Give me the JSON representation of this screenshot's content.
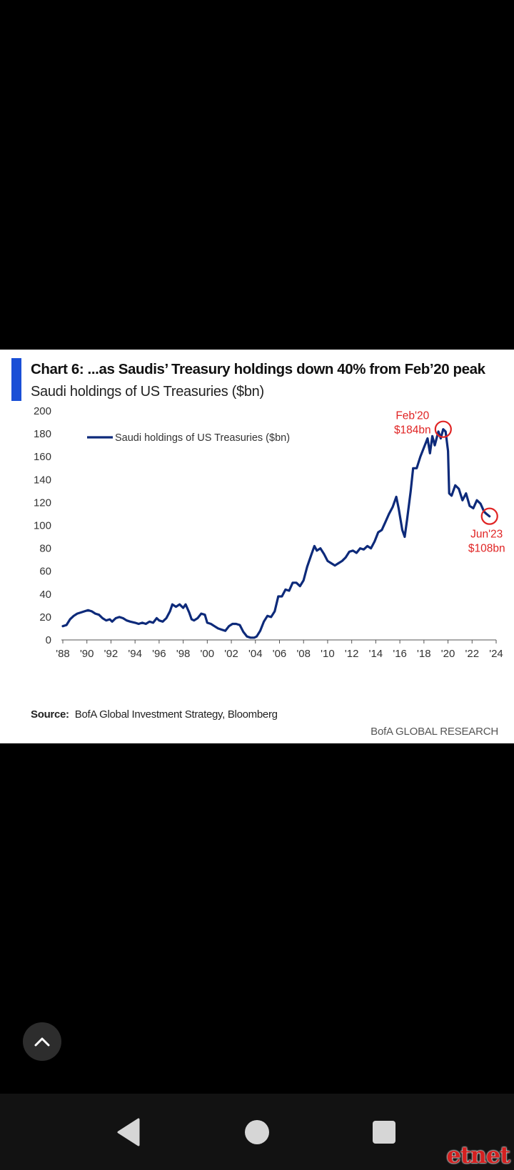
{
  "chart_data": {
    "type": "line",
    "title": "Chart 6: ...as Saudis’ Treasury holdings down 40% from Feb’20 peak",
    "subtitle": "Saudi holdings of US Treasuries ($bn)",
    "xlabel": "",
    "ylabel": "",
    "xlim": [
      1988,
      2024
    ],
    "ylim": [
      0,
      200
    ],
    "yticks": [
      0,
      20,
      40,
      60,
      80,
      100,
      120,
      140,
      160,
      180,
      200
    ],
    "xticks": [
      {
        "v": 1988,
        "label": "'88"
      },
      {
        "v": 1990,
        "label": "'90"
      },
      {
        "v": 1992,
        "label": "'92"
      },
      {
        "v": 1994,
        "label": "'94"
      },
      {
        "v": 1996,
        "label": "'96"
      },
      {
        "v": 1998,
        "label": "'98"
      },
      {
        "v": 2000,
        "label": "'00"
      },
      {
        "v": 2002,
        "label": "'02"
      },
      {
        "v": 2004,
        "label": "'04"
      },
      {
        "v": 2006,
        "label": "'06"
      },
      {
        "v": 2008,
        "label": "'08"
      },
      {
        "v": 2010,
        "label": "'10"
      },
      {
        "v": 2012,
        "label": "'12"
      },
      {
        "v": 2014,
        "label": "'14"
      },
      {
        "v": 2016,
        "label": "'16"
      },
      {
        "v": 2018,
        "label": "'18"
      },
      {
        "v": 2020,
        "label": "'20"
      },
      {
        "v": 2022,
        "label": "'22"
      },
      {
        "v": 2024,
        "label": "'24"
      }
    ],
    "grid": false,
    "legend_position": "top-left",
    "series": [
      {
        "name": "Saudi holdings of US Treasuries ($bn)",
        "color": "#0d2a7a",
        "points": [
          [
            1988.0,
            12
          ],
          [
            1988.3,
            13
          ],
          [
            1988.6,
            18
          ],
          [
            1988.9,
            21
          ],
          [
            1989.2,
            23
          ],
          [
            1989.5,
            24
          ],
          [
            1989.8,
            25
          ],
          [
            1990.1,
            26
          ],
          [
            1990.4,
            25
          ],
          [
            1990.7,
            23
          ],
          [
            1991.0,
            22
          ],
          [
            1991.3,
            19
          ],
          [
            1991.6,
            17
          ],
          [
            1991.9,
            18
          ],
          [
            1992.1,
            16
          ],
          [
            1992.4,
            19
          ],
          [
            1992.7,
            20
          ],
          [
            1993.0,
            19
          ],
          [
            1993.3,
            17
          ],
          [
            1993.6,
            16
          ],
          [
            1994.0,
            15
          ],
          [
            1994.3,
            14
          ],
          [
            1994.6,
            15
          ],
          [
            1994.9,
            14
          ],
          [
            1995.2,
            16
          ],
          [
            1995.5,
            15
          ],
          [
            1995.8,
            19
          ],
          [
            1996.0,
            17
          ],
          [
            1996.3,
            16
          ],
          [
            1996.6,
            19
          ],
          [
            1996.9,
            25
          ],
          [
            1997.1,
            31
          ],
          [
            1997.4,
            29
          ],
          [
            1997.7,
            31
          ],
          [
            1998.0,
            28
          ],
          [
            1998.2,
            31
          ],
          [
            1998.5,
            24
          ],
          [
            1998.7,
            18
          ],
          [
            1998.9,
            17
          ],
          [
            1999.2,
            19
          ],
          [
            1999.5,
            23
          ],
          [
            1999.8,
            22
          ],
          [
            2000.0,
            15
          ],
          [
            2000.3,
            14
          ],
          [
            2000.6,
            12
          ],
          [
            2000.9,
            10
          ],
          [
            2001.2,
            9
          ],
          [
            2001.5,
            8
          ],
          [
            2001.8,
            12
          ],
          [
            2002.1,
            14
          ],
          [
            2002.4,
            14
          ],
          [
            2002.7,
            13
          ],
          [
            2003.0,
            7
          ],
          [
            2003.3,
            3
          ],
          [
            2003.6,
            2
          ],
          [
            2003.9,
            2
          ],
          [
            2004.1,
            3
          ],
          [
            2004.4,
            8
          ],
          [
            2004.7,
            16
          ],
          [
            2005.0,
            21
          ],
          [
            2005.3,
            20
          ],
          [
            2005.6,
            25
          ],
          [
            2005.9,
            38
          ],
          [
            2006.2,
            38
          ],
          [
            2006.5,
            44
          ],
          [
            2006.8,
            43
          ],
          [
            2007.1,
            50
          ],
          [
            2007.4,
            50
          ],
          [
            2007.7,
            47
          ],
          [
            2008.0,
            52
          ],
          [
            2008.3,
            64
          ],
          [
            2008.6,
            73
          ],
          [
            2008.9,
            82
          ],
          [
            2009.1,
            78
          ],
          [
            2009.4,
            80
          ],
          [
            2009.7,
            75
          ],
          [
            2010.0,
            69
          ],
          [
            2010.3,
            67
          ],
          [
            2010.6,
            65
          ],
          [
            2010.9,
            67
          ],
          [
            2011.2,
            69
          ],
          [
            2011.5,
            72
          ],
          [
            2011.8,
            77
          ],
          [
            2012.1,
            78
          ],
          [
            2012.4,
            76
          ],
          [
            2012.7,
            80
          ],
          [
            2013.0,
            79
          ],
          [
            2013.3,
            82
          ],
          [
            2013.6,
            80
          ],
          [
            2013.9,
            86
          ],
          [
            2014.2,
            94
          ],
          [
            2014.5,
            96
          ],
          [
            2014.8,
            103
          ],
          [
            2015.1,
            110
          ],
          [
            2015.4,
            116
          ],
          [
            2015.7,
            125
          ],
          [
            2015.9,
            115
          ],
          [
            2016.2,
            96
          ],
          [
            2016.4,
            90
          ],
          [
            2016.6,
            105
          ],
          [
            2016.9,
            130
          ],
          [
            2017.1,
            150
          ],
          [
            2017.4,
            150
          ],
          [
            2017.7,
            160
          ],
          [
            2018.0,
            168
          ],
          [
            2018.3,
            176
          ],
          [
            2018.5,
            163
          ],
          [
            2018.7,
            178
          ],
          [
            2018.9,
            170
          ],
          [
            2019.2,
            182
          ],
          [
            2019.4,
            176
          ],
          [
            2019.6,
            184
          ],
          [
            2019.8,
            182
          ],
          [
            2020.0,
            165
          ],
          [
            2020.1,
            128
          ],
          [
            2020.3,
            126
          ],
          [
            2020.6,
            135
          ],
          [
            2020.9,
            132
          ],
          [
            2021.2,
            122
          ],
          [
            2021.5,
            128
          ],
          [
            2021.8,
            117
          ],
          [
            2022.1,
            115
          ],
          [
            2022.4,
            122
          ],
          [
            2022.7,
            119
          ],
          [
            2023.0,
            112
          ],
          [
            2023.2,
            110
          ],
          [
            2023.45,
            108
          ]
        ]
      }
    ],
    "annotations": [
      {
        "x": 2019.6,
        "y": 184,
        "lines": [
          "Feb'20",
          "$184bn"
        ],
        "side": "left",
        "color": "#e02424"
      },
      {
        "x": 2023.45,
        "y": 108,
        "lines": [
          "Jun'23",
          "$108bn"
        ],
        "side": "below",
        "color": "#e02424"
      }
    ]
  },
  "source": {
    "label": "Source:",
    "text": "BofA Global Investment Strategy, Bloomberg"
  },
  "credit": "BofA GLOBAL RESEARCH",
  "watermark": "etnet",
  "ui": {
    "scroll_top_icon": "chevron-up-icon",
    "nav_back_icon": "triangle-back-icon",
    "nav_home_icon": "circle-home-icon",
    "nav_recents_icon": "square-recents-icon"
  }
}
